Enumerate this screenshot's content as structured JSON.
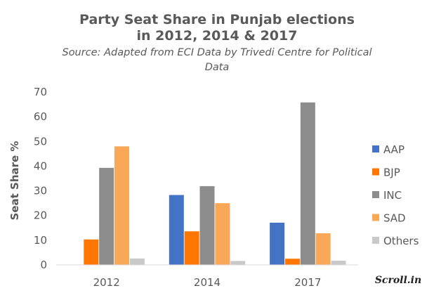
{
  "chart_data": {
    "type": "bar",
    "title_lines": [
      "Party Seat Share in Punjab elections",
      "in 2012, 2014 & 2017"
    ],
    "subtitle_lines": [
      "Source: Adapted from ECI Data by Trivedi Centre for Political",
      "Data"
    ],
    "xlabel": "",
    "ylabel": "Seat Share %",
    "ylim": [
      0,
      70
    ],
    "yticks": [
      "0",
      "10",
      "20",
      "30",
      "40",
      "50",
      "60",
      "70"
    ],
    "categories": [
      "2012",
      "2014",
      "2017"
    ],
    "series": [
      {
        "name": "AAP",
        "color": "#4472C4",
        "values": [
          0,
          28.3,
          17.1
        ]
      },
      {
        "name": "BJP",
        "color": "#FF7700",
        "values": [
          10.3,
          13.6,
          2.5
        ]
      },
      {
        "name": "INC",
        "color": "#8C8C8C",
        "values": [
          39.3,
          31.9,
          65.8
        ]
      },
      {
        "name": "SAD",
        "color": "#F9A857",
        "values": [
          48.0,
          25.0,
          12.8
        ]
      },
      {
        "name": "Others",
        "color": "#C9C9C9",
        "values": [
          2.6,
          1.6,
          1.7
        ]
      }
    ],
    "grid": false,
    "legend_position": "right"
  },
  "logo_text": "Scroll.in"
}
